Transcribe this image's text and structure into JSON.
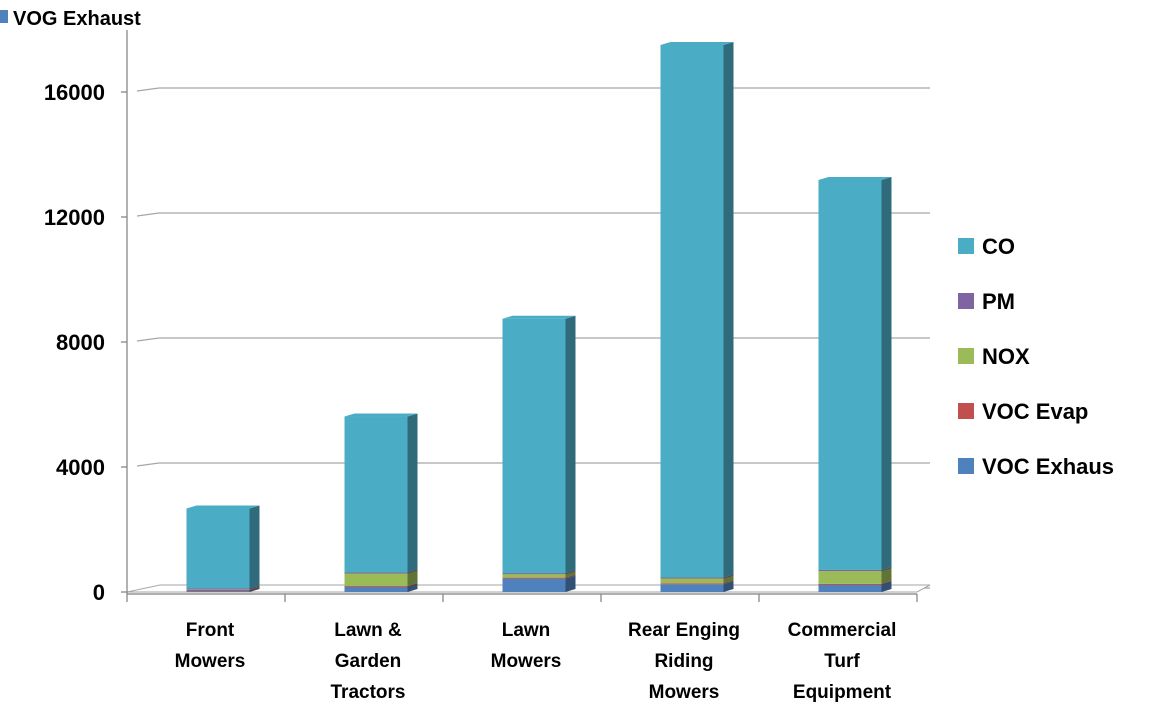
{
  "chart_data": {
    "type": "bar",
    "stacked": true,
    "title": "VOG Exhaust",
    "categories": [
      [
        "Front",
        "Mowers"
      ],
      [
        "Lawn &",
        "Garden",
        "Tractors"
      ],
      [
        "Lawn",
        "Mowers"
      ],
      [
        "Rear Enging",
        "Riding",
        "Mowers"
      ],
      [
        "Commercial",
        "Turf",
        "Equipment"
      ]
    ],
    "yticks": [
      "0",
      "4000",
      "8000",
      "12000",
      "16000"
    ],
    "ylim": [
      0,
      18000
    ],
    "grid": true,
    "legend_position": "right",
    "series": [
      {
        "name": "VOC Exhaus",
        "color": "#4f81bd",
        "values": [
          60,
          170,
          430,
          250,
          240
        ]
      },
      {
        "name": "VOC Evap",
        "color": "#c0504d",
        "values": [
          10,
          20,
          30,
          30,
          20
        ]
      },
      {
        "name": "NOX",
        "color": "#9bbb59",
        "values": [
          40,
          430,
          140,
          180,
          440
        ]
      },
      {
        "name": "PM",
        "color": "#8064a2",
        "values": [
          3,
          5,
          5,
          5,
          5
        ]
      },
      {
        "name": "CO",
        "color": "#4bacc6",
        "values": [
          2560,
          4990,
          8140,
          17040,
          12480
        ]
      }
    ],
    "legend_order": [
      "CO",
      "PM",
      "NOX",
      "VOC Evap",
      "VOC Exhaus"
    ]
  }
}
